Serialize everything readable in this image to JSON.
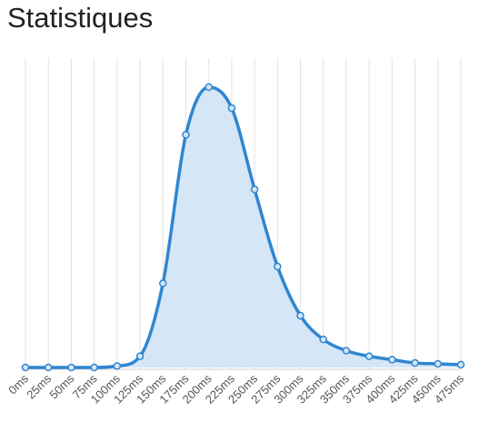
{
  "page": {
    "title": "Statistiques"
  },
  "colors": {
    "line": "#2f86d1",
    "fill": "#d5e6f6",
    "grid": "#e2e2e2",
    "axis": "#cfcfcf",
    "tick_text": "#555555"
  },
  "chart_data": {
    "type": "area",
    "title": "",
    "xlabel": "",
    "ylabel": "",
    "x_unit": "ms",
    "x": [
      0,
      25,
      50,
      75,
      100,
      125,
      150,
      175,
      200,
      225,
      250,
      275,
      300,
      325,
      350,
      375,
      400,
      425,
      450,
      475
    ],
    "tick_labels": [
      "0ms",
      "25ms",
      "50ms",
      "75ms",
      "100ms",
      "125ms",
      "150ms",
      "175ms",
      "200ms",
      "225ms",
      "250ms",
      "275ms",
      "300ms",
      "325ms",
      "350ms",
      "375ms",
      "400ms",
      "425ms",
      "450ms",
      "475ms"
    ],
    "values": [
      0.0,
      0.0,
      0.0,
      0.0,
      0.5,
      4.0,
      30.0,
      83.0,
      100.0,
      92.5,
      63.5,
      36.0,
      18.5,
      10.0,
      6.0,
      4.0,
      2.8,
      1.6,
      1.3,
      1.0
    ],
    "ylim": [
      0,
      100
    ],
    "y_axis_visible": false,
    "grid": "vertical",
    "legend": "none",
    "curve": "smooth",
    "markers": "circle"
  }
}
